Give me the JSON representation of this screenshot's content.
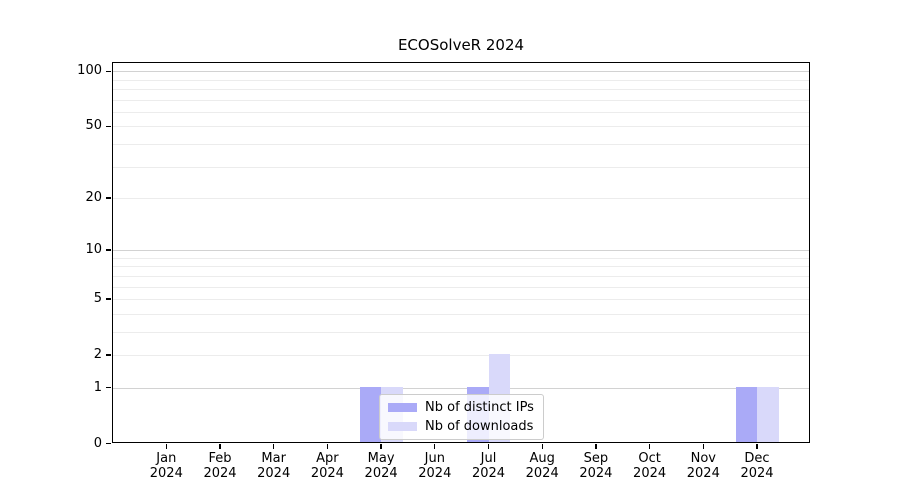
{
  "chart_data": {
    "type": "bar",
    "title": "ECOSolveR 2024",
    "categories": [
      "Jan",
      "Feb",
      "Mar",
      "Apr",
      "May",
      "Jun",
      "Jul",
      "Aug",
      "Sep",
      "Oct",
      "Nov",
      "Dec"
    ],
    "year": "2024",
    "series": [
      {
        "name": "Nb of distinct IPs",
        "color": "#aaaaf7",
        "values": [
          0,
          0,
          0,
          0,
          1,
          0,
          1,
          0,
          0,
          0,
          0,
          1
        ]
      },
      {
        "name": "Nb of downloads",
        "color": "#d9d9fa",
        "values": [
          0,
          0,
          0,
          0,
          1,
          0,
          2,
          0,
          0,
          0,
          0,
          1
        ]
      }
    ],
    "yticks": [
      0,
      1,
      2,
      5,
      10,
      20,
      50,
      100
    ],
    "minor_gridlines": [
      2,
      3,
      4,
      5,
      6,
      7,
      8,
      9,
      20,
      30,
      40,
      50,
      60,
      70,
      80,
      90
    ],
    "major_gridlines": [
      1,
      10,
      100
    ],
    "scale": "log1p",
    "ylim_top_approx": 115,
    "grid": "horizontal",
    "legend_position": "inside-bottom-center",
    "colors": {
      "axis": "#000000",
      "grid_major": "#d2d2d2",
      "grid_minor": "#ececec",
      "legend_border": "#cccccc",
      "background": "#ffffff"
    }
  }
}
